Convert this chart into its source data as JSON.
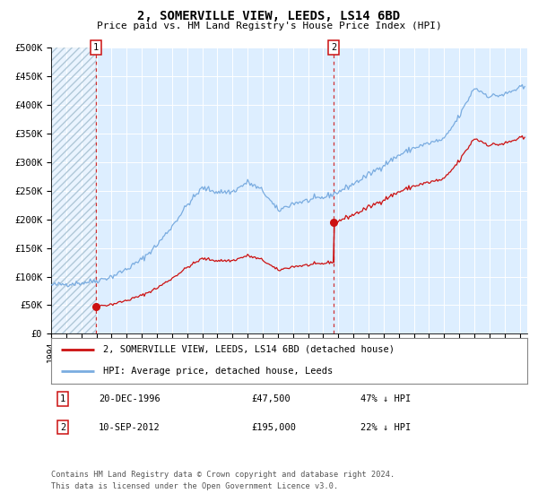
{
  "title": "2, SOMERVILLE VIEW, LEEDS, LS14 6BD",
  "subtitle": "Price paid vs. HM Land Registry's House Price Index (HPI)",
  "background_color": "#ffffff",
  "plot_bg_color": "#ddeeff",
  "hatch_color": "#c8d8e8",
  "grid_color": "#ffffff",
  "hpi_color": "#7aace0",
  "price_color": "#cc1111",
  "ylim": [
    0,
    500000
  ],
  "yticks": [
    0,
    50000,
    100000,
    150000,
    200000,
    250000,
    300000,
    350000,
    400000,
    450000,
    500000
  ],
  "xmin": 1994.0,
  "xmax": 2025.5,
  "t1_date": 1996.97,
  "t1_price": 47500,
  "t2_date": 2012.7,
  "t2_price": 195000,
  "legend_entries": [
    "2, SOMERVILLE VIEW, LEEDS, LS14 6BD (detached house)",
    "HPI: Average price, detached house, Leeds"
  ],
  "annotation1_label": "1",
  "annotation1_date": "20-DEC-1996",
  "annotation1_price": "£47,500",
  "annotation1_hpi": "47% ↓ HPI",
  "annotation2_label": "2",
  "annotation2_date": "10-SEP-2012",
  "annotation2_price": "£195,000",
  "annotation2_hpi": "22% ↓ HPI",
  "footer1": "Contains HM Land Registry data © Crown copyright and database right 2024.",
  "footer2": "This data is licensed under the Open Government Licence v3.0."
}
